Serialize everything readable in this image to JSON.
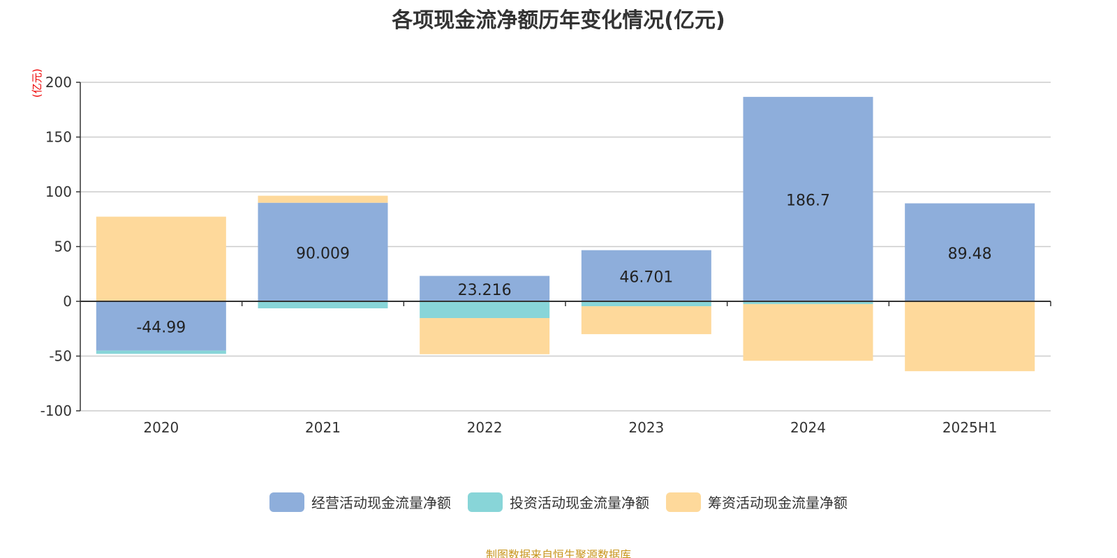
{
  "title": "各项现金流净额历年变化情况(亿元)",
  "source": "制图数据来自恒生聚源数据库",
  "chart_data": {
    "type": "bar",
    "stacked": true,
    "title": "各项现金流净额历年变化情况(亿元)",
    "ylabel": "(亿元)",
    "ylim": [
      -100,
      200
    ],
    "yticks": [
      "200",
      "150",
      "100",
      "50",
      "0",
      "-50",
      "-100"
    ],
    "ytick_values": [
      200,
      150,
      100,
      50,
      0,
      -50,
      -100
    ],
    "categories": [
      "2020",
      "2021",
      "2022",
      "2023",
      "2024",
      "2025H1"
    ],
    "grid": true,
    "legend_position": "bottom",
    "series": [
      {
        "name": "经营活动现金流量净额",
        "color": "#8eaedb",
        "values": [
          -44.99,
          90.009,
          23.216,
          46.701,
          186.7,
          89.48
        ],
        "labels": [
          "-44.99",
          "90.009",
          "23.216",
          "46.701",
          "186.7",
          "89.48"
        ]
      },
      {
        "name": "投资活动现金流量净额",
        "color": "#88d5d8",
        "values": [
          -3.0,
          -6.4,
          -15.3,
          -4.5,
          -2.5,
          -0.3
        ]
      },
      {
        "name": "筹资活动现金流量净额",
        "color": "#fed99b",
        "values": [
          77.3,
          6.4,
          -33.0,
          -25.5,
          -51.8,
          -63.5
        ]
      }
    ]
  }
}
